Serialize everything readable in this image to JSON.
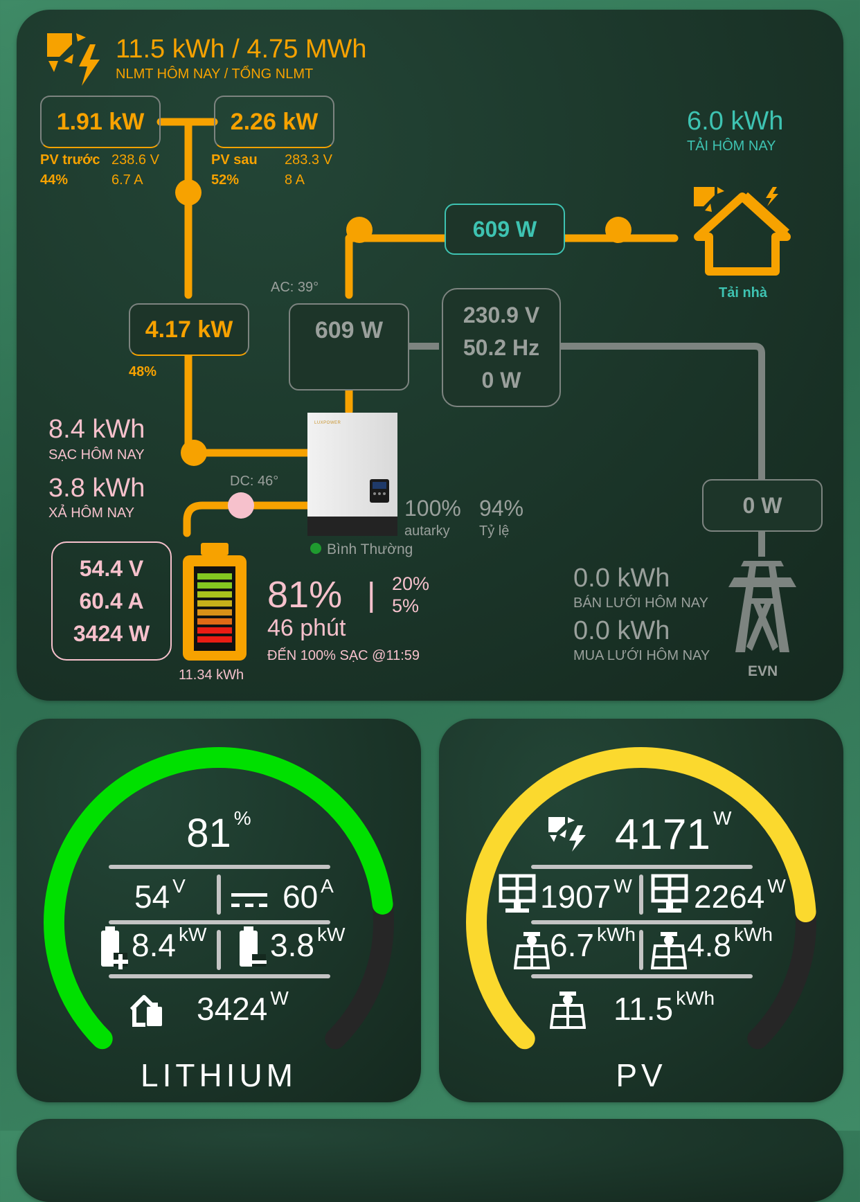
{
  "top": {
    "solar_today_total": "11.5 kWh / 4.75 MWh",
    "solar_caption": "NLMT HÔM NAY / TỔNG NLMT",
    "pv_front": {
      "power": "1.91 kW",
      "name": "PV trước",
      "percent": "44%",
      "voltage": "238.6 V",
      "current": "6.7 A"
    },
    "pv_rear": {
      "power": "2.26 kW",
      "name": "PV sau",
      "percent": "52%",
      "voltage": "283.3 V",
      "current": "8 A"
    },
    "pv_total": {
      "power": "4.17 kW",
      "percent": "48%"
    },
    "load_today": "6.0 kWh",
    "load_today_caption": "TẢI HÔM NAY",
    "load_power": "609 W",
    "home_label": "Tải nhà",
    "ac_temp": "AC: 39°",
    "inverter_out": "609 W",
    "grid_voltage": "230.9 V",
    "grid_freq": "50.2 Hz",
    "grid_power": "0 W",
    "grid_box_power": "0 W",
    "charge_today": "8.4 kWh",
    "charge_today_caption": "SẠC HÔM NAY",
    "discharge_today": "3.8 kWh",
    "discharge_today_caption": "XẢ HÔM NAY",
    "dc_temp": "DC: 46°",
    "autarky_value": "100%",
    "autarky_label": "autarky",
    "ratio_value": "94%",
    "ratio_label": "Tỷ lệ",
    "status_text": "Bình Thường",
    "battery": {
      "voltage": "54.4 V",
      "current": "60.4 A",
      "power": "3424 W",
      "capacity": "11.34 kWh",
      "soc": "81%",
      "sep": "|",
      "min1": "20%",
      "min2": "5%",
      "time": "46 phút",
      "eta": "ĐẾN 100% SẠC @11:59"
    },
    "sell_today": "0.0 kWh",
    "sell_caption": "BÁN LƯỚI HÔM NAY",
    "buy_today": "0.0 kWh",
    "buy_caption": "MUA LƯỚI HÔM NAY",
    "grid_label": "EVN",
    "inverter_brand": "LUXPOWER"
  },
  "lithium": {
    "title": "LITHIUM",
    "soc": "81",
    "soc_unit": "%",
    "soc_fraction": 0.81,
    "voltage": "54",
    "voltage_unit": "V",
    "current": "60",
    "current_unit": "A",
    "charge": "8.4",
    "charge_unit": "kW",
    "discharge": "3.8",
    "discharge_unit": "kW",
    "power": "3424",
    "power_unit": "W",
    "color": "#00e000"
  },
  "pv": {
    "title": "PV",
    "total": "4171",
    "total_unit": "W",
    "fraction": 0.82,
    "pv1": "1907",
    "pv1_unit": "W",
    "pv2": "2264",
    "pv2_unit": "W",
    "e1": "6.7",
    "e1_unit": "kWh",
    "e2": "4.8",
    "e2_unit": "kWh",
    "etotal": "11.5",
    "etotal_unit": "kWh",
    "color": "#fbd92e"
  }
}
